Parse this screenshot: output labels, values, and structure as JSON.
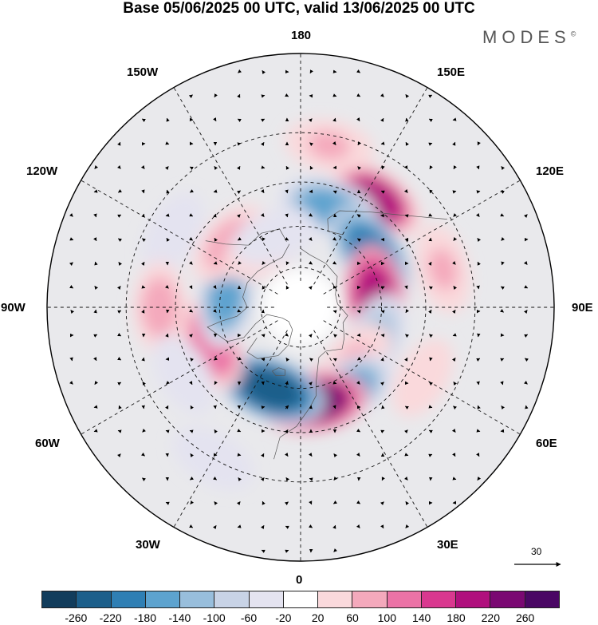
{
  "title": "Base 05/06/2025 00 UTC, valid 13/06/2025 00 UTC",
  "brand": "MODES",
  "brand_mark": "©",
  "longitude_labels": {
    "n": "180",
    "s": "0",
    "e": "90E",
    "w": "90W",
    "ne1": "150E",
    "ne2": "120E",
    "se1": "60E",
    "se2": "30E",
    "nw1": "150W",
    "nw2": "120W",
    "sw1": "60W",
    "sw2": "30W"
  },
  "reference_vector": "30",
  "colorbar": {
    "ticks": [
      "-260",
      "-220",
      "-180",
      "-140",
      "-100",
      "-60",
      "-20",
      "20",
      "60",
      "100",
      "140",
      "180",
      "220",
      "260"
    ],
    "colors": [
      "#123d5c",
      "#1c5f8b",
      "#2f7fb4",
      "#5da3cf",
      "#98bedc",
      "#c8d3e6",
      "#e4e3f0",
      "#ffffff",
      "#fad9dc",
      "#f4a9bc",
      "#eb73a6",
      "#d9388f",
      "#b0107d",
      "#7a0872",
      "#4a0764"
    ]
  },
  "anomaly_centers": [
    {
      "lon": 145,
      "lat": 43,
      "value": 180
    },
    {
      "lon": 165,
      "lat": 52,
      "value": -160
    },
    {
      "lon": 128,
      "lat": 57,
      "value": -220
    },
    {
      "lon": 97,
      "lat": 62,
      "value": 210
    },
    {
      "lon": 67,
      "lat": 60,
      "value": -110
    },
    {
      "lon": 45,
      "lat": 62,
      "value": 60
    },
    {
      "lon": 30,
      "lat": 55,
      "value": -160
    },
    {
      "lon": 8,
      "lat": 55,
      "value": 230
    },
    {
      "lon": -20,
      "lat": 58,
      "value": -260
    },
    {
      "lon": -68,
      "lat": 55,
      "value": 130
    },
    {
      "lon": -97,
      "lat": 62,
      "value": -150
    },
    {
      "lon": -132,
      "lat": 55,
      "value": 90
    },
    {
      "lon": -148,
      "lat": 64,
      "value": 70
    },
    {
      "lon": -160,
      "lat": 62,
      "value": -60
    },
    {
      "lon": -120,
      "lat": 38,
      "value": -60
    },
    {
      "lon": -90,
      "lat": 40,
      "value": 80
    },
    {
      "lon": -60,
      "lat": 42,
      "value": -40
    },
    {
      "lon": 60,
      "lat": 40,
      "value": 20
    },
    {
      "lon": 105,
      "lat": 38,
      "value": 60
    },
    {
      "lon": -30,
      "lat": 30,
      "value": -60
    },
    {
      "lon": 170,
      "lat": 33,
      "value": 60
    }
  ]
}
